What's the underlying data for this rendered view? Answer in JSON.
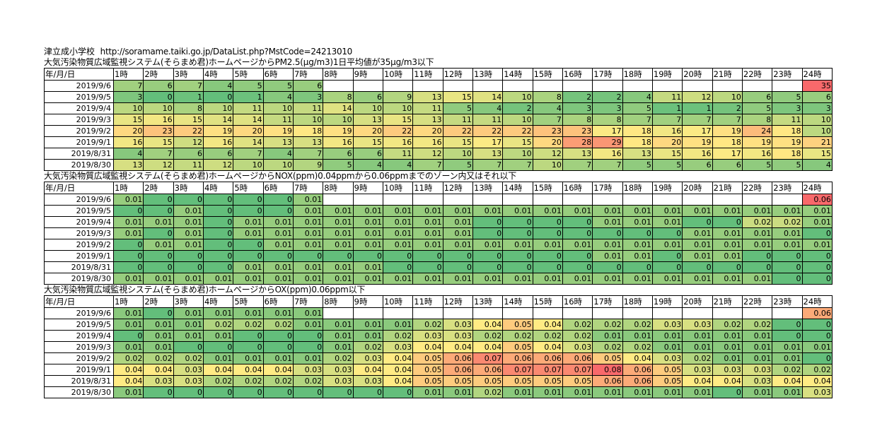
{
  "header": {
    "school": "津立成小学校",
    "url": "http://soramame.taiki.go.jp/DataList.php?MstCode=24213010"
  },
  "columns": {
    "date_header": "年/月/日",
    "hours": [
      "1時",
      "2時",
      "3時",
      "4時",
      "5時",
      "6時",
      "7時",
      "8時",
      "9時",
      "10時",
      "11時",
      "12時",
      "13時",
      "14時",
      "15時",
      "16時",
      "17時",
      "18時",
      "19時",
      "20時",
      "21時",
      "22時",
      "23時",
      "24時"
    ]
  },
  "sections": [
    {
      "title": "大気汚染物質広域監視システム(そらまめ君)ホームページからPM2.5(μg/m3)1日平均値が35μg/m3以下",
      "rows": [
        {
          "date": "2019/9/6",
          "values": [
            "7",
            "6",
            "7",
            "4",
            "5",
            "5",
            "6",
            "",
            "",
            "",
            "",
            "",
            "",
            "",
            "",
            "",
            "",
            "",
            "",
            "",
            "",
            "",
            "",
            "35"
          ]
        },
        {
          "date": "2019/9/5",
          "values": [
            "3",
            "0",
            "1",
            "0",
            "1",
            "4",
            "3",
            "8",
            "6",
            "9",
            "13",
            "15",
            "14",
            "10",
            "8",
            "2",
            "2",
            "4",
            "11",
            "12",
            "10",
            "6",
            "5",
            "6"
          ]
        },
        {
          "date": "2019/9/4",
          "values": [
            "10",
            "10",
            "8",
            "10",
            "11",
            "10",
            "11",
            "14",
            "10",
            "10",
            "11",
            "5",
            "4",
            "2",
            "4",
            "3",
            "3",
            "5",
            "1",
            "1",
            "2",
            "5",
            "3",
            "3"
          ]
        },
        {
          "date": "2019/9/3",
          "values": [
            "15",
            "16",
            "15",
            "14",
            "14",
            "11",
            "10",
            "10",
            "13",
            "15",
            "13",
            "11",
            "11",
            "10",
            "7",
            "8",
            "8",
            "7",
            "7",
            "7",
            "7",
            "8",
            "11",
            "10"
          ]
        },
        {
          "date": "2019/9/2",
          "values": [
            "20",
            "23",
            "22",
            "19",
            "20",
            "19",
            "18",
            "19",
            "20",
            "22",
            "20",
            "22",
            "22",
            "22",
            "23",
            "23",
            "17",
            "18",
            "16",
            "17",
            "19",
            "24",
            "18",
            "10"
          ]
        },
        {
          "date": "2019/9/1",
          "values": [
            "16",
            "15",
            "12",
            "16",
            "14",
            "13",
            "13",
            "16",
            "15",
            "16",
            "16",
            "15",
            "17",
            "15",
            "20",
            "28",
            "29",
            "18",
            "20",
            "19",
            "18",
            "19",
            "19",
            "21"
          ]
        },
        {
          "date": "2019/8/31",
          "values": [
            "4",
            "7",
            "6",
            "6",
            "7",
            "4",
            "7",
            "6",
            "6",
            "11",
            "12",
            "10",
            "13",
            "10",
            "12",
            "13",
            "16",
            "13",
            "15",
            "16",
            "17",
            "16",
            "18",
            "15"
          ]
        },
        {
          "date": "2019/8/30",
          "values": [
            "13",
            "12",
            "11",
            "12",
            "10",
            "10",
            "9",
            "5",
            "4",
            "4",
            "7",
            "5",
            "7",
            "7",
            "10",
            "7",
            "7",
            "5",
            "5",
            "6",
            "6",
            "5",
            "5",
            "4"
          ]
        }
      ]
    },
    {
      "title": "大気汚染物質広域監視システム(そらまめ君)ホームページからNOX(ppm)0.04ppmから0.06ppmまでのゾーン内又はそれ以下",
      "rows": [
        {
          "date": "2019/9/6",
          "values": [
            "0.01",
            "0",
            "0",
            "0",
            "0",
            "0",
            "0.01",
            "",
            "",
            "",
            "",
            "",
            "",
            "",
            "",
            "",
            "",
            "",
            "",
            "",
            "",
            "",
            "",
            "0.06"
          ]
        },
        {
          "date": "2019/9/5",
          "values": [
            "0",
            "0",
            "0.01",
            "0",
            "0",
            "0",
            "0.01",
            "0.01",
            "0.01",
            "0.01",
            "0.01",
            "0.01",
            "0.01",
            "0.01",
            "0.01",
            "0.01",
            "0.01",
            "0.01",
            "0.01",
            "0.01",
            "0.01",
            "0.01",
            "0.01",
            "0.01"
          ]
        },
        {
          "date": "2019/9/4",
          "values": [
            "0.01",
            "0.01",
            "0.01",
            "0",
            "0.01",
            "0.01",
            "0.01",
            "0.01",
            "0.01",
            "0.01",
            "0.01",
            "0.01",
            "0",
            "0",
            "0",
            "0",
            "0.01",
            "0.01",
            "0.01",
            "0",
            "0",
            "0.02",
            "0.02",
            "0.01"
          ]
        },
        {
          "date": "2019/9/3",
          "values": [
            "0.01",
            "0",
            "0.01",
            "0",
            "0.01",
            "0.01",
            "0.01",
            "0.01",
            "0.01",
            "0.01",
            "0.01",
            "0.01",
            "0",
            "0",
            "0",
            "0",
            "0",
            "0",
            "0",
            "0.01",
            "0.01",
            "0.01",
            "0.01",
            "0"
          ]
        },
        {
          "date": "2019/9/2",
          "values": [
            "0",
            "0.01",
            "0.01",
            "0",
            "0",
            "0.01",
            "0.01",
            "0.01",
            "0.01",
            "0.01",
            "0.01",
            "0.01",
            "0.01",
            "0.01",
            "0.01",
            "0.01",
            "0.01",
            "0.01",
            "0.01",
            "0.01",
            "0.01",
            "0.01",
            "0.01",
            "0.01"
          ]
        },
        {
          "date": "2019/9/1",
          "values": [
            "0",
            "0",
            "0",
            "0",
            "0",
            "0",
            "0",
            "0",
            "0",
            "0",
            "0",
            "0",
            "0",
            "0",
            "0",
            "0",
            "0.01",
            "0.01",
            "0",
            "0.01",
            "0.01",
            "0",
            "0",
            "0"
          ]
        },
        {
          "date": "2019/8/31",
          "values": [
            "0",
            "0",
            "0",
            "0",
            "0.01",
            "0.01",
            "0.01",
            "0.01",
            "0.01",
            "0",
            "0",
            "0",
            "0",
            "0",
            "0",
            "0",
            "0",
            "0",
            "0",
            "0",
            "0",
            "0",
            "0",
            "0"
          ]
        },
        {
          "date": "2019/8/30",
          "values": [
            "0.01",
            "0.01",
            "0.01",
            "0.01",
            "0.01",
            "0.01",
            "0.01",
            "0.01",
            "0.01",
            "0.01",
            "0.01",
            "0.01",
            "0.01",
            "0.01",
            "0.01",
            "0.01",
            "0.01",
            "0.01",
            "0.01",
            "0.01",
            "0.01",
            "0.01",
            "0",
            "0"
          ]
        }
      ]
    },
    {
      "title": "大気汚染物質広域監視システム(そらまめ君)ホームページからOX(ppm)0.06ppm以下",
      "rows": [
        {
          "date": "2019/9/6",
          "values": [
            "0.01",
            "0",
            "0.01",
            "0.01",
            "0.01",
            "0.01",
            "0.01",
            "",
            "",
            "",
            "",
            "",
            "",
            "",
            "",
            "",
            "",
            "",
            "",
            "",
            "",
            "",
            "",
            "0.06"
          ]
        },
        {
          "date": "2019/9/5",
          "values": [
            "0.01",
            "0.01",
            "0.01",
            "0.02",
            "0.02",
            "0.02",
            "0.01",
            "0.01",
            "0.01",
            "0.01",
            "0.02",
            "0.03",
            "0.04",
            "0.05",
            "0.04",
            "0.02",
            "0.02",
            "0.02",
            "0.03",
            "0.03",
            "0.02",
            "0.02",
            "0",
            "0"
          ]
        },
        {
          "date": "2019/9/4",
          "values": [
            "0",
            "0.01",
            "0.01",
            "0.01",
            "0",
            "0",
            "0",
            "0.01",
            "0.01",
            "0.02",
            "0.03",
            "0.03",
            "0.02",
            "0.02",
            "0.02",
            "0.02",
            "0.01",
            "0.01",
            "0.01",
            "0.01",
            "0.01",
            "0.01",
            "0",
            "0"
          ]
        },
        {
          "date": "2019/9/3",
          "values": [
            "0.01",
            "0.01",
            "0",
            "0",
            "0",
            "0",
            "0",
            "0.01",
            "0.02",
            "0.03",
            "0.04",
            "0.04",
            "0.04",
            "0.05",
            "0.04",
            "0.03",
            "0.02",
            "0.02",
            "0.01",
            "0.01",
            "0.01",
            "0.01",
            "0.01",
            "0.01"
          ]
        },
        {
          "date": "2019/9/2",
          "values": [
            "0.02",
            "0.02",
            "0.02",
            "0.01",
            "0.01",
            "0.01",
            "0.01",
            "0.02",
            "0.03",
            "0.04",
            "0.05",
            "0.06",
            "0.07",
            "0.06",
            "0.06",
            "0.06",
            "0.05",
            "0.04",
            "0.03",
            "0.02",
            "0.01",
            "0.01",
            "0.01",
            "0"
          ]
        },
        {
          "date": "2019/9/1",
          "values": [
            "0.04",
            "0.04",
            "0.03",
            "0.04",
            "0.04",
            "0.04",
            "0.03",
            "0.03",
            "0.04",
            "0.04",
            "0.05",
            "0.06",
            "0.06",
            "0.07",
            "0.07",
            "0.07",
            "0.08",
            "0.06",
            "0.05",
            "0.03",
            "0.03",
            "0.03",
            "0.02",
            "0.02"
          ]
        },
        {
          "date": "2019/8/31",
          "values": [
            "0.04",
            "0.03",
            "0.03",
            "0.02",
            "0.02",
            "0.02",
            "0.02",
            "0.03",
            "0.03",
            "0.04",
            "0.05",
            "0.05",
            "0.05",
            "0.05",
            "0.05",
            "0.05",
            "0.06",
            "0.06",
            "0.05",
            "0.04",
            "0.04",
            "0.03",
            "0.04",
            "0.04"
          ]
        },
        {
          "date": "2019/8/30",
          "values": [
            "0.01",
            "0",
            "0",
            "0",
            "0",
            "0",
            "0",
            "0",
            "0",
            "0",
            "0.01",
            "0.01",
            "0.02",
            "0.01",
            "0.01",
            "0.01",
            "0.01",
            "0.01",
            "0.01",
            "0.01",
            "0",
            "0.01",
            "0.01",
            "0.03"
          ]
        }
      ]
    }
  ]
}
